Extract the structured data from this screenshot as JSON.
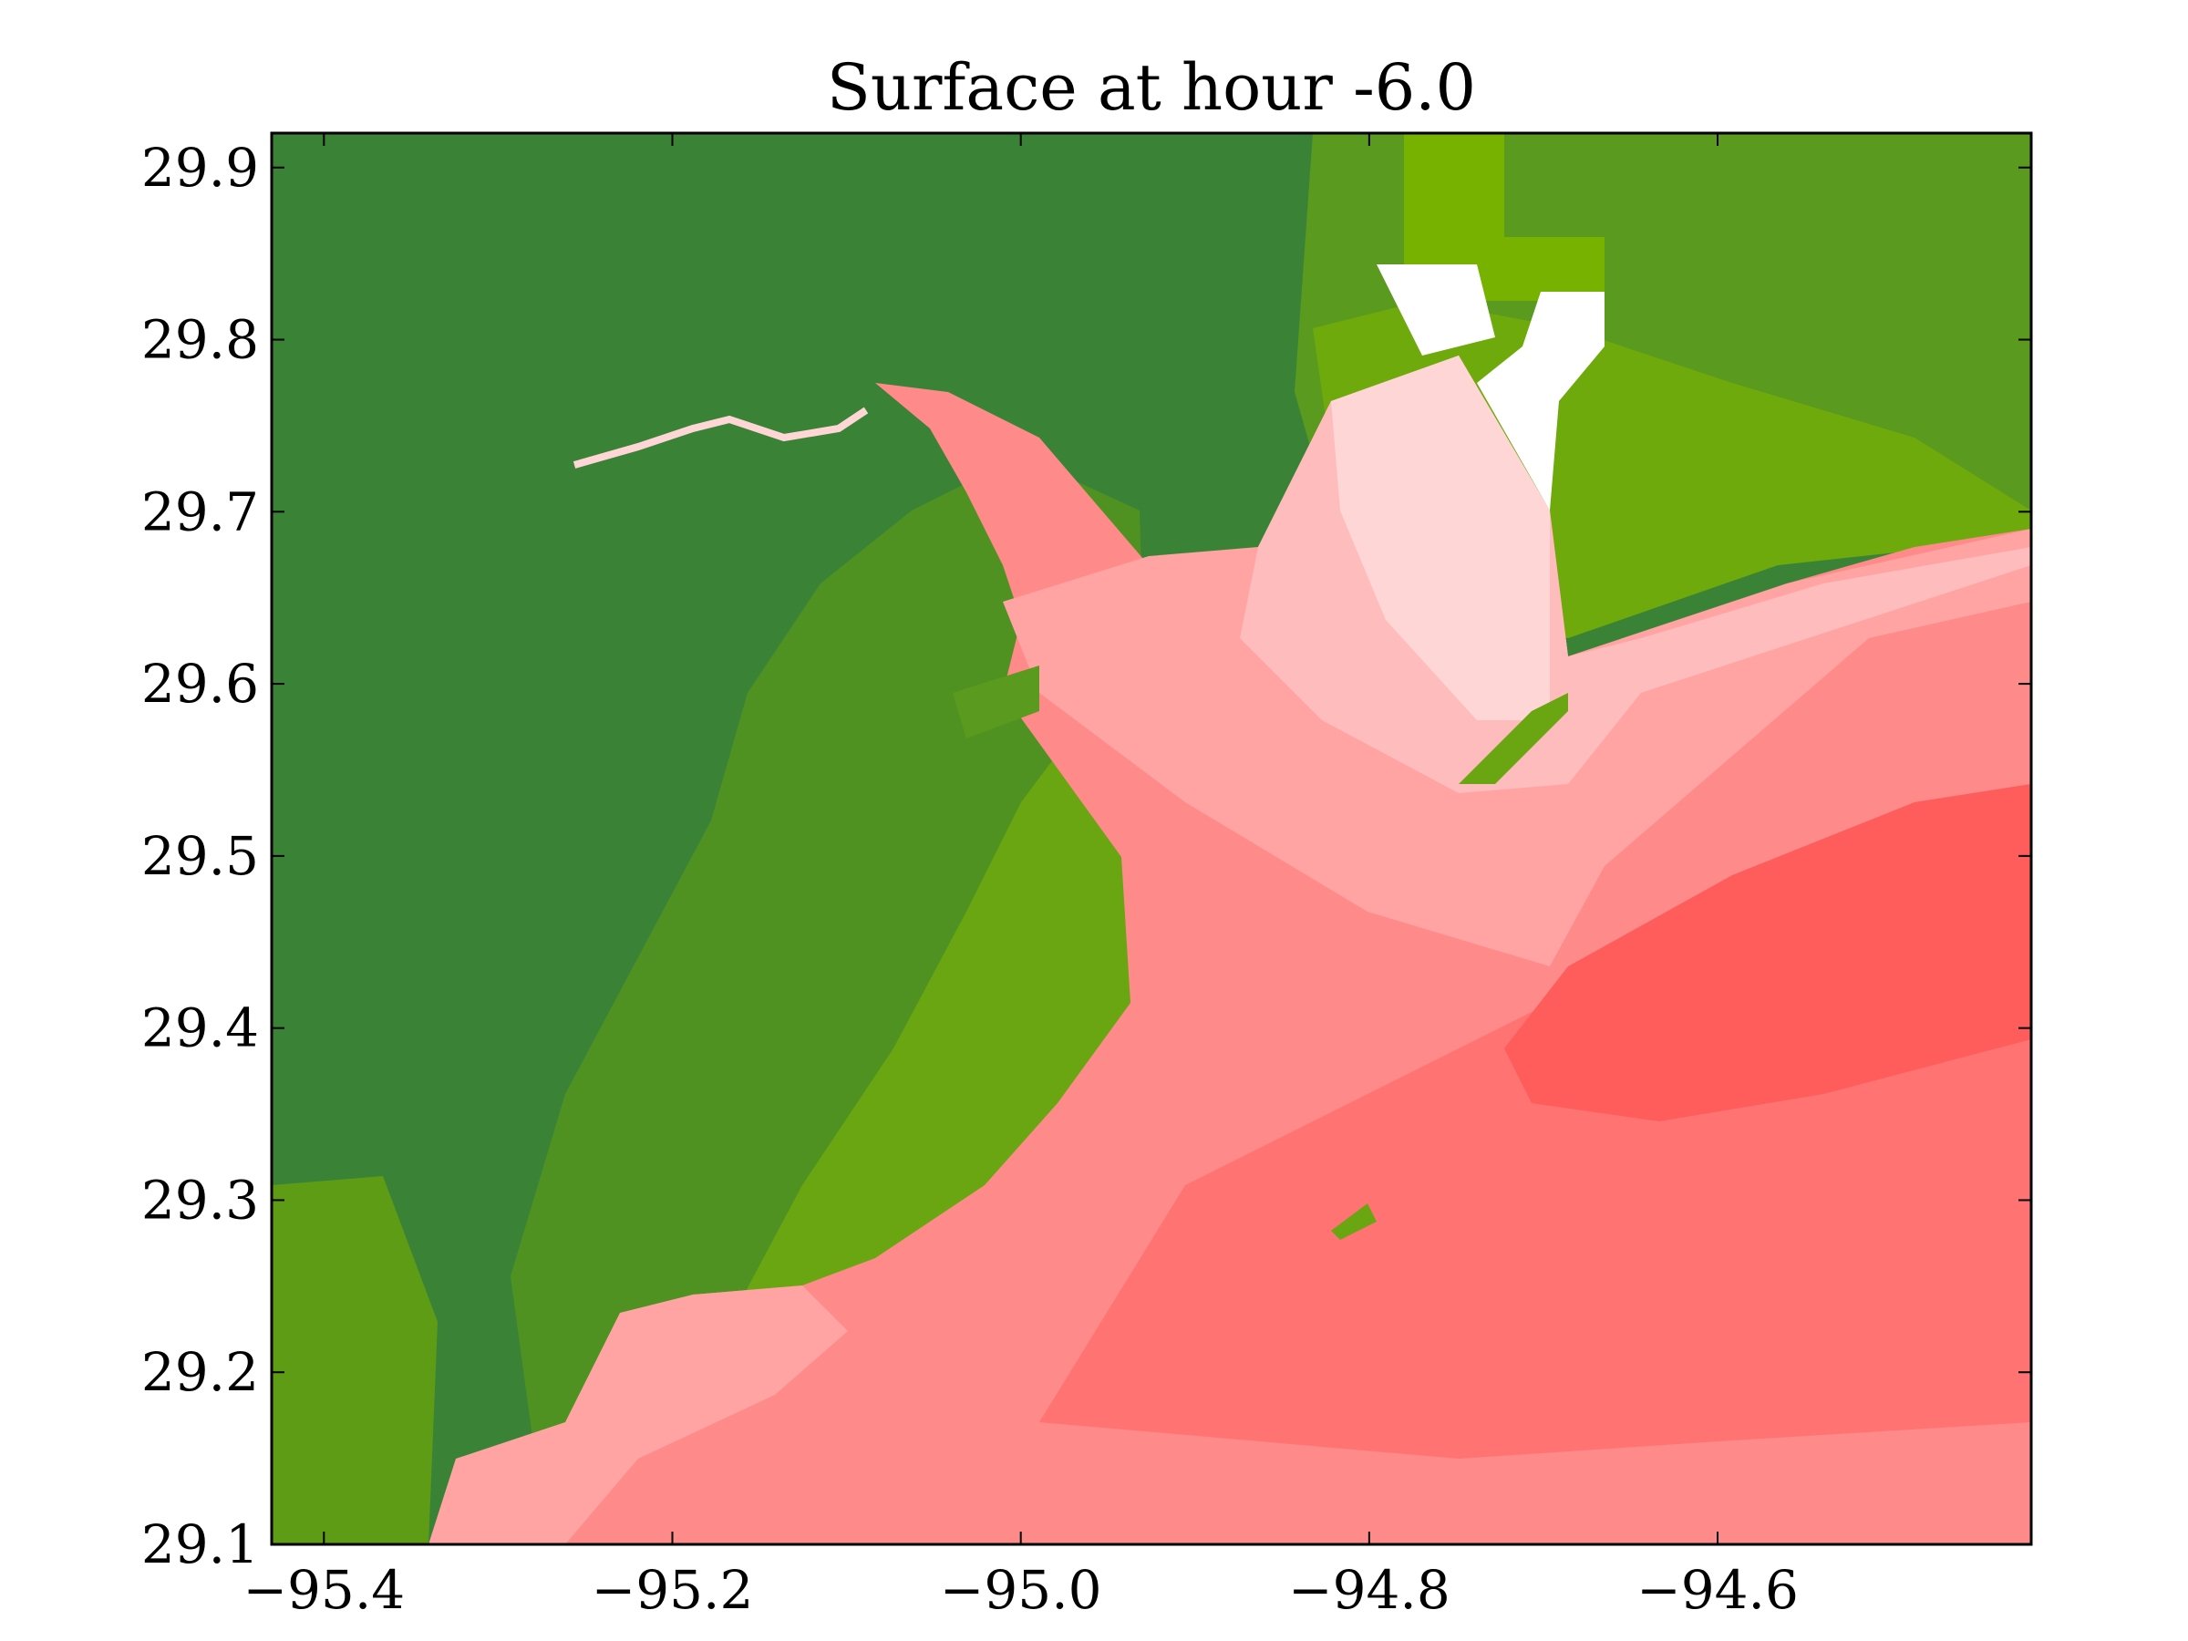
{
  "chart_data": {
    "type": "heatmap",
    "title": "Surface at hour -6.0",
    "xlabel": "",
    "ylabel": "",
    "xlim": [
      -95.43,
      -94.42
    ],
    "ylim": [
      29.1,
      29.92
    ],
    "x_ticks": [
      -95.4,
      -95.2,
      -95.0,
      -94.8,
      -94.6
    ],
    "y_ticks": [
      29.1,
      29.2,
      29.3,
      29.4,
      29.5,
      29.6,
      29.7,
      29.8,
      29.9
    ],
    "x_tick_labels": [
      "−95.4",
      "−95.2",
      "−95.0",
      "−94.8",
      "−94.6"
    ],
    "y_tick_labels": [
      "29.1",
      "29.2",
      "29.3",
      "29.4",
      "29.5",
      "29.6",
      "29.7",
      "29.8",
      "29.9"
    ],
    "grid": false,
    "colors": {
      "land_dark": "#357f38",
      "land_mid": "#4f9222",
      "land_light": "#77b200",
      "water_very_light": "#ffd6d6",
      "water_light": "#ffbcbc",
      "water_mid": "#ffa3a3",
      "water_deep": "#ff8a8a",
      "water_deeper": "#ff7373",
      "water_deepest": "#ff5c5c",
      "dry_cell": "#ffffff"
    }
  }
}
